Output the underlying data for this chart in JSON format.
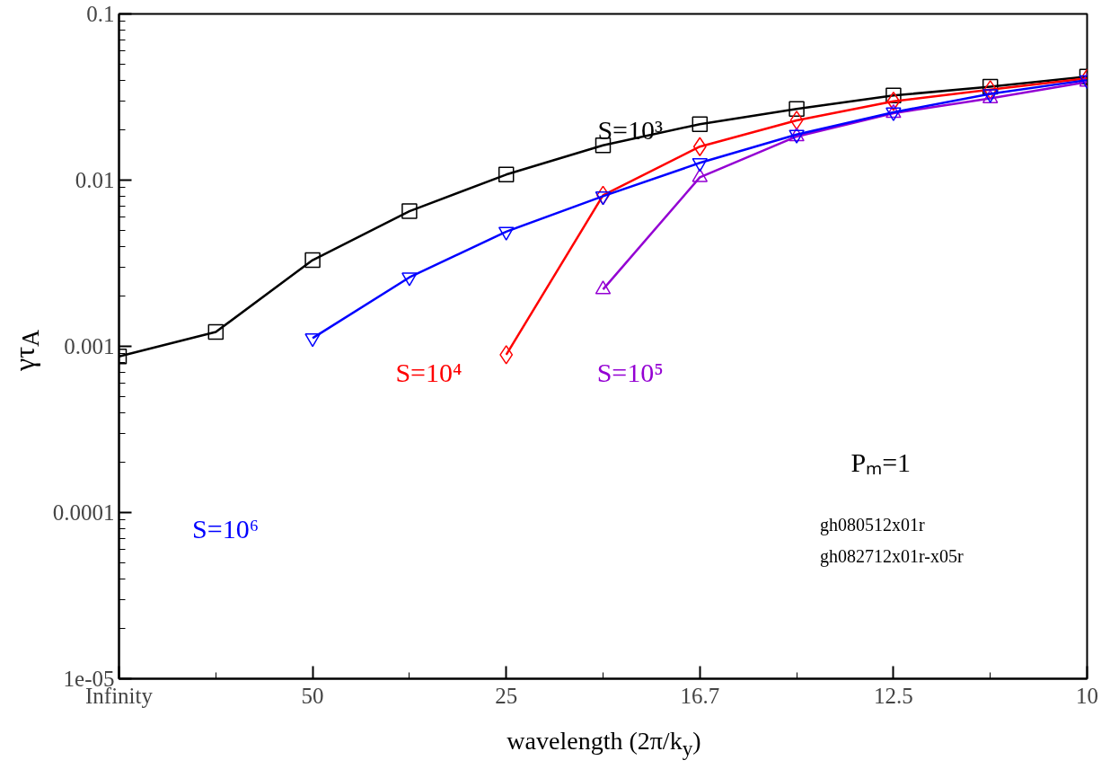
{
  "chart_data": {
    "type": "line",
    "xlabel": "wavelength (2π/k$_{y}$)",
    "ylabel": "γτ$_{A}$",
    "log": "y",
    "categories": [
      "Infinity",
      null,
      "50",
      null,
      "25",
      null,
      "16.7",
      null,
      "12.5",
      null,
      "10"
    ],
    "ylim": [
      1e-05,
      0.1
    ],
    "yticks": [
      {
        "value": 1e-05,
        "label": "1e-05"
      },
      0.0001,
      0.001,
      0.01,
      0.1
    ],
    "grid": false,
    "legend": false,
    "series": [
      {
        "name": "S=10³",
        "color": "#000000",
        "marker": "square",
        "values": [
          0.00087,
          0.00122,
          0.0033,
          0.0065,
          0.0108,
          0.0162,
          0.0217,
          0.0268,
          0.0323,
          0.0365,
          0.042
        ]
      },
      {
        "name": "S=10⁴",
        "color": "#ff0000",
        "marker": "diamond",
        "values": [
          null,
          null,
          null,
          null,
          0.00089,
          0.0081,
          0.0159,
          0.0229,
          0.0298,
          0.035,
          0.041
        ]
      },
      {
        "name": "S=10⁵",
        "color": "#9400d3",
        "marker": "triangle",
        "values": [
          null,
          null,
          null,
          null,
          null,
          0.0022,
          0.0104,
          0.0183,
          0.0253,
          0.031,
          0.039
        ]
      },
      {
        "name": "S=10⁶",
        "color": "#0000ff",
        "marker": "triangle",
        "values": [
          null,
          null,
          0.00112,
          0.0026,
          0.0049,
          0.008,
          0.0127,
          0.0188,
          0.0256,
          0.033,
          0.04
        ]
      }
    ],
    "annotations": [
      "Pₘ=1",
      "gh080512x01r",
      "gh082712x01r-x05r"
    ]
  }
}
